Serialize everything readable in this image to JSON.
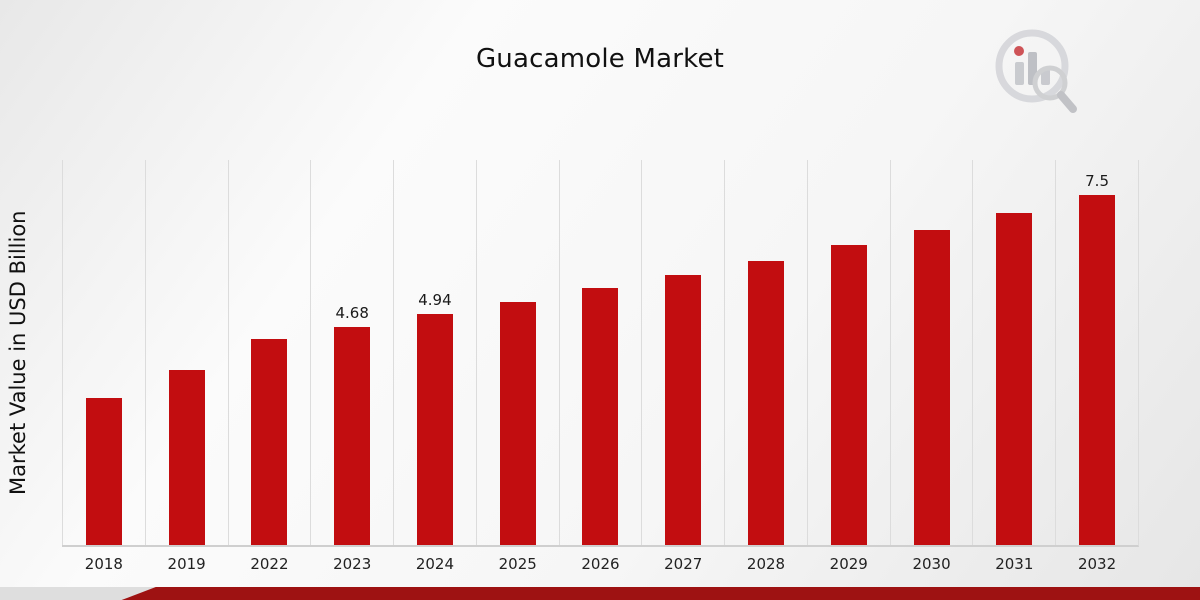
{
  "chart_data": {
    "type": "bar",
    "title": "Guacamole Market",
    "xlabel": "",
    "ylabel": "Market Value in USD Billion",
    "categories": [
      "2018",
      "2019",
      "2022",
      "2023",
      "2024",
      "2025",
      "2026",
      "2027",
      "2028",
      "2029",
      "2030",
      "2031",
      "2032"
    ],
    "values": [
      3.15,
      3.75,
      4.42,
      4.68,
      4.94,
      5.2,
      5.5,
      5.78,
      6.08,
      6.42,
      6.75,
      7.12,
      7.5
    ],
    "data_labels": [
      "",
      "",
      "",
      "4.68",
      "4.94",
      "",
      "",
      "",
      "",
      "",
      "",
      "",
      "7.5"
    ],
    "ylim": [
      0,
      8.25
    ],
    "grid": "vertical",
    "legend": "none",
    "bar_color": "#c20d10"
  },
  "branding": {
    "logo_name": "market-research-logo",
    "logo_accent_color": "#c8373c",
    "logo_gray_color": "#c2c4c9"
  },
  "footer": {
    "band_color": "#9e1212",
    "wedge_color": "#dedede"
  }
}
